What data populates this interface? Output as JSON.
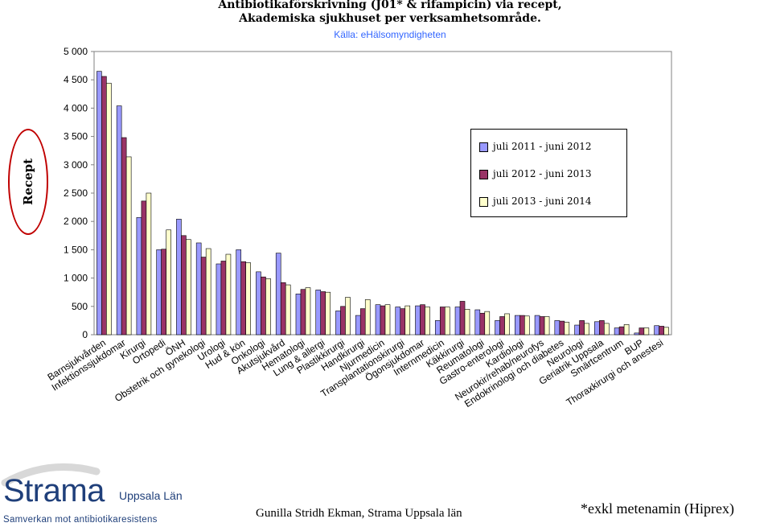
{
  "title_lines": [
    "Antibiotikaförskrivning (J01* & rifampicin) via recept,",
    "Akademiska sjukhuset per verksamhetsområde."
  ],
  "subtitle": "Källa: eHälsomyndigheten",
  "side_label": "Recept",
  "logo": {
    "name": "Strama",
    "region": "Uppsala Län",
    "tagline": "Samverkan mot antibiotikaresistens"
  },
  "author": "Gunilla Stridh Ekman, Strama Uppsala län",
  "footnote": "*exkl metenamin (Hiprex)",
  "colors": {
    "series1": "#9999ff",
    "series2": "#993366",
    "series3": "#ffffcc",
    "oval": "#c00000",
    "subtitle": "#3366ff",
    "logo": "#1f3f7a"
  },
  "chart_data": {
    "type": "bar",
    "ylim": [
      0,
      5000
    ],
    "yticks": [
      "0",
      "500",
      "1 000",
      "1 500",
      "2 000",
      "2 500",
      "3 000",
      "3 500",
      "4 000",
      "4 500",
      "5 000"
    ],
    "ytick_values": [
      0,
      500,
      1000,
      1500,
      2000,
      2500,
      3000,
      3500,
      4000,
      4500,
      5000
    ],
    "legend_position": "upper-right",
    "categories": [
      "Barnsjukvården",
      "Infektionssjukdomar",
      "Kirurgi",
      "Ortopedi",
      "ÖNH",
      "Obstetrik och gynekologi",
      "Urologi",
      "Hud & kön",
      "Onkologi",
      "Akutsjukvård",
      "Hematologi",
      "Lung & allergi",
      "Plastikkirurgi",
      "Handkirurgi",
      "Njurmedicin",
      "Transplantationskirurgi",
      "Ögonsjukdomar",
      "Internmedicin",
      "Käkkirurgi",
      "Reumatologi",
      "Gastro-enterologi",
      "Kardiologi",
      "Neurokir/rehab/neurofys",
      "Endokrinologi och diabetes",
      "Neurologi",
      "Geriatrik Uppsala",
      "Smärtcentrum",
      "BUP",
      "Thoraxkirurgi och anestesi"
    ],
    "series": [
      {
        "name": "juli 2011 - juni 2012",
        "values": [
          4650,
          4040,
          2070,
          1500,
          2040,
          1620,
          1250,
          1500,
          1110,
          1440,
          720,
          790,
          420,
          340,
          530,
          490,
          510,
          250,
          490,
          440,
          250,
          340,
          340,
          250,
          170,
          230,
          120,
          30,
          160
        ]
      },
      {
        "name": "juli 2012 - juni 2013",
        "values": [
          4560,
          3480,
          2360,
          1510,
          1750,
          1370,
          1300,
          1290,
          1020,
          920,
          800,
          760,
          500,
          460,
          510,
          460,
          530,
          490,
          590,
          380,
          320,
          340,
          320,
          240,
          250,
          250,
          140,
          120,
          150
        ]
      },
      {
        "name": "juli 2013 - juni 2014",
        "values": [
          4440,
          3140,
          2500,
          1850,
          1680,
          1520,
          1420,
          1270,
          990,
          880,
          830,
          750,
          660,
          620,
          530,
          510,
          490,
          490,
          450,
          410,
          370,
          330,
          320,
          220,
          200,
          200,
          180,
          120,
          130
        ]
      }
    ]
  }
}
